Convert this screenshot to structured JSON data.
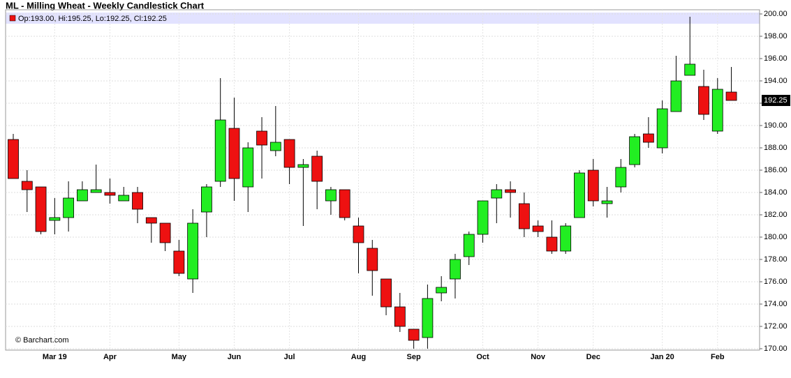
{
  "chart_data": {
    "type": "candlestick",
    "title": "ML - Milling Wheat - Weekly Candlestick Chart",
    "legend": "Op:193.00, Hi:195.25, Lo:192.25, Cl:192.25",
    "source": "© Barchart.com",
    "up_color": "#22ee22",
    "down_color": "#ee1111",
    "grid": true,
    "categories": [
      null,
      null,
      null,
      "Mar 19",
      null,
      null,
      null,
      "Apr",
      null,
      null,
      null,
      null,
      "May",
      null,
      null,
      null,
      "Jun",
      null,
      null,
      null,
      "Jul",
      null,
      null,
      null,
      null,
      "Aug",
      null,
      null,
      null,
      "Sep",
      null,
      null,
      null,
      null,
      "Oct",
      null,
      null,
      null,
      "Nov",
      null,
      null,
      null,
      "Dec",
      null,
      null,
      null,
      null,
      "Jan 20",
      null,
      null,
      null,
      "Feb",
      null
    ],
    "open": [
      188.75,
      185,
      184.5,
      181.5,
      181.75,
      183.25,
      184,
      184,
      183.25,
      184,
      181.75,
      181.25,
      178.75,
      176.25,
      182.25,
      185,
      189.75,
      184.5,
      189.5,
      187.75,
      188.75,
      186.25,
      187.25,
      183.25,
      184.25,
      181,
      179,
      176.25,
      173.75,
      171.75,
      171,
      175,
      176.25,
      178.25,
      180.25,
      183.5,
      184.25,
      183,
      181,
      180,
      178.75,
      181.75,
      186,
      183,
      184.5,
      186.5,
      189.25,
      188,
      191.25,
      194.5,
      193.5,
      189.5,
      193
    ],
    "high": [
      189.25,
      186,
      184.5,
      183.5,
      185,
      185,
      186.5,
      185.25,
      184.5,
      184.5,
      181.75,
      181.25,
      179.75,
      182.5,
      184.75,
      194.25,
      192.5,
      188.5,
      190.75,
      191.75,
      188.75,
      187,
      187.75,
      184.5,
      184.25,
      181.75,
      179.75,
      176.25,
      175,
      171.75,
      175.75,
      176.5,
      178.5,
      180.5,
      183.25,
      184.75,
      185,
      184,
      181.5,
      181.5,
      181.25,
      186,
      187,
      184.5,
      187,
      189.25,
      190.75,
      192.25,
      196.25,
      199.75,
      195,
      194.25,
      195.25
    ],
    "low": [
      185.25,
      182.25,
      180.25,
      180.25,
      180.5,
      183.25,
      184,
      183,
      183.25,
      181.25,
      179.5,
      178.75,
      176.5,
      175,
      180,
      184.5,
      183.25,
      182.25,
      185.25,
      187.25,
      184.75,
      181,
      182.5,
      182,
      181.5,
      176.75,
      174.75,
      173,
      171.5,
      170,
      170,
      174.25,
      174.5,
      177.5,
      179.5,
      181.25,
      181.75,
      180,
      180,
      178.5,
      178.5,
      181.75,
      182.75,
      181.75,
      184,
      186.25,
      188,
      187.5,
      191.25,
      194.5,
      190.5,
      189.25,
      192.25
    ],
    "close": [
      185.25,
      184.25,
      180.5,
      181.75,
      183.5,
      184.25,
      184.25,
      183.75,
      183.75,
      182.5,
      181.25,
      179.5,
      176.75,
      181.25,
      184.5,
      190.5,
      185.25,
      188,
      188.25,
      188.5,
      186.25,
      186.5,
      185,
      184.25,
      181.75,
      179.5,
      177,
      173.75,
      172,
      170.75,
      174.5,
      175.5,
      178,
      180.25,
      183.25,
      184.25,
      184,
      180.75,
      180.5,
      178.75,
      181,
      185.75,
      183.25,
      183.25,
      186.25,
      189,
      188.5,
      191.5,
      194,
      195.5,
      191,
      193.25,
      192.25
    ],
    "ylim": [
      169.875,
      200.375
    ],
    "yticks": [
      {
        "value": 170,
        "label": "170.00"
      },
      {
        "value": 172,
        "label": "172.00"
      },
      {
        "value": 174,
        "label": "174.00"
      },
      {
        "value": 176,
        "label": "176.00"
      },
      {
        "value": 178,
        "label": "178.00"
      },
      {
        "value": 180,
        "label": "180.00"
      },
      {
        "value": 182,
        "label": "182.00"
      },
      {
        "value": 184,
        "label": "184.00"
      },
      {
        "value": 186,
        "label": "186.00"
      },
      {
        "value": 188,
        "label": "188.00"
      },
      {
        "value": 190,
        "label": "190.00"
      },
      {
        "value": 192,
        "label": "192.00"
      },
      {
        "value": 194,
        "label": "194.00"
      },
      {
        "value": 196,
        "label": "196.00"
      },
      {
        "value": 198,
        "label": "198.00"
      },
      {
        "value": 200,
        "label": "200.00"
      }
    ]
  }
}
